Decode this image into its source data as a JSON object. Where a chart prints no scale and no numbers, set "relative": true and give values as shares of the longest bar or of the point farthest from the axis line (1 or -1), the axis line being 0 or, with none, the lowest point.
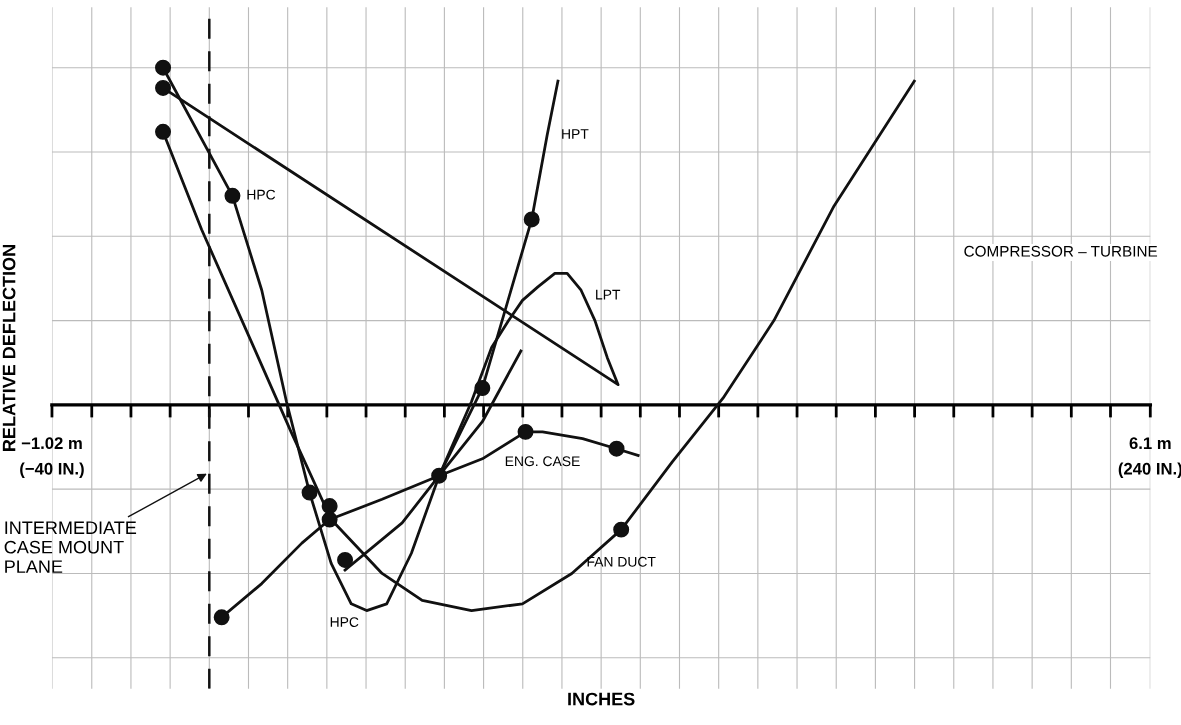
{
  "chart_data": {
    "type": "line",
    "relative": true,
    "xlabel": "INCHES",
    "ylabel": "RELATIVE DEFLECTION",
    "xlim": [
      -1.02,
      6.1
    ],
    "xticks": [
      {
        "value": -1.02,
        "label": "−1.02 m"
      },
      {
        "value": -0.762,
        "label": null
      },
      {
        "value": -0.508,
        "label": null
      },
      {
        "value": -0.254,
        "label": null
      },
      {
        "value": 0,
        "label": null
      },
      {
        "value": 0.254,
        "label": null
      },
      {
        "value": 0.508,
        "label": null
      },
      {
        "value": 0.762,
        "label": null
      },
      {
        "value": 1.016,
        "label": null
      },
      {
        "value": 1.27,
        "label": null
      },
      {
        "value": 1.524,
        "label": null
      },
      {
        "value": 1.778,
        "label": null
      },
      {
        "value": 2.032,
        "label": null
      },
      {
        "value": 2.286,
        "label": null
      },
      {
        "value": 2.54,
        "label": null
      },
      {
        "value": 2.794,
        "label": null
      },
      {
        "value": 3.048,
        "label": null
      },
      {
        "value": 3.302,
        "label": null
      },
      {
        "value": 3.556,
        "label": null
      },
      {
        "value": 3.81,
        "label": null
      },
      {
        "value": 4.064,
        "label": null
      },
      {
        "value": 4.318,
        "label": null
      },
      {
        "value": 4.572,
        "label": null
      },
      {
        "value": 4.826,
        "label": null
      },
      {
        "value": 5.08,
        "label": null
      },
      {
        "value": 5.334,
        "label": null
      },
      {
        "value": 5.588,
        "label": null
      },
      {
        "value": 5.842,
        "label": null
      },
      {
        "value": 6.1,
        "label": "6.1 m"
      }
    ],
    "grid": true,
    "marker": "none",
    "line_style": "solid",
    "series": [
      {
        "color": "#111111",
        "x": [
          -0.3,
          0.15,
          0.34,
          0.5,
          0.65,
          0.79,
          0.92,
          1.02,
          1.15,
          1.31,
          1.49,
          1.77,
          2.09,
          2.19,
          2.26
        ],
        "values": [
          1.0,
          0.62,
          0.34,
          0.01,
          -0.26,
          -0.47,
          -0.59,
          -0.61,
          -0.59,
          -0.44,
          -0.21,
          0.05,
          0.55,
          0.8,
          0.96
        ]
      },
      {
        "color": "#111111",
        "x": [
          -0.3,
          -0.05,
          0.27,
          0.53,
          0.79,
          1.12,
          1.38,
          1.7,
          2.03,
          2.35,
          2.67,
          3.0,
          3.33,
          3.66,
          4.05,
          4.57
        ],
        "values": [
          0.81,
          0.52,
          0.19,
          -0.08,
          -0.34,
          -0.5,
          -0.58,
          -0.61,
          -0.59,
          -0.5,
          -0.37,
          -0.17,
          0.02,
          0.25,
          0.59,
          0.96
        ]
      },
      {
        "color": "#111111",
        "x": [
          -0.3,
          2.65,
          2.58,
          2.5,
          2.41,
          2.32,
          2.24,
          2.13,
          2.03,
          1.94,
          1.83,
          1.7,
          1.49
        ],
        "values": [
          0.94,
          0.06,
          0.14,
          0.25,
          0.34,
          0.39,
          0.39,
          0.35,
          0.31,
          0.25,
          0.17,
          0.01,
          -0.21
        ]
      },
      {
        "color": "#111111",
        "x": [
          0.08,
          0.34,
          0.6,
          0.78,
          1.12,
          1.49,
          1.77,
          2.05,
          2.16,
          2.42,
          2.64,
          2.78
        ],
        "values": [
          -0.63,
          -0.53,
          -0.41,
          -0.34,
          -0.28,
          -0.21,
          -0.16,
          -0.08,
          -0.08,
          -0.1,
          -0.13,
          -0.15
        ]
      },
      {
        "color": "#111111",
        "x": [
          0.88,
          1.25,
          1.49,
          1.77,
          2.02
        ],
        "values": [
          -0.49,
          -0.35,
          -0.21,
          -0.05,
          0.16
        ]
      },
      {
        "type": "scatter",
        "color": "#111111",
        "marker": "circle",
        "x": [
          -0.3,
          -0.3,
          -0.3,
          0.15,
          0.65,
          0.78,
          0.78,
          0.88,
          1.49,
          1.77,
          2.09,
          2.05,
          2.64,
          2.67,
          0.08
        ],
        "values": [
          1.0,
          0.94,
          0.81,
          0.62,
          -0.26,
          -0.3,
          -0.34,
          -0.46,
          -0.21,
          0.05,
          0.55,
          -0.08,
          -0.13,
          -0.37,
          -0.63
        ]
      }
    ],
    "ref_lines": [
      {
        "axis": "x",
        "value": 0,
        "label": "INTERMEDIATE\nCASE MOUNT\nPLANE",
        "line_style": "dashed",
        "color": "#111111"
      }
    ],
    "annotations": [
      {
        "text": "HPC",
        "x": 0.15,
        "y": 0.62
      },
      {
        "text": "HPT",
        "x": 2.19,
        "y": 0.8
      },
      {
        "text": "LPT",
        "x": 2.41,
        "y": 0.34
      },
      {
        "text": "ENG. CASE",
        "x": 2.16,
        "y": -0.08
      },
      {
        "text": "FAN DUCT",
        "x": 2.67,
        "y": -0.37
      },
      {
        "text": "HPC",
        "x": 0.92,
        "y": -0.59
      },
      "(−40 IN.)",
      "(240 IN.)",
      "COMPRESSOR – TURBINE"
    ]
  }
}
